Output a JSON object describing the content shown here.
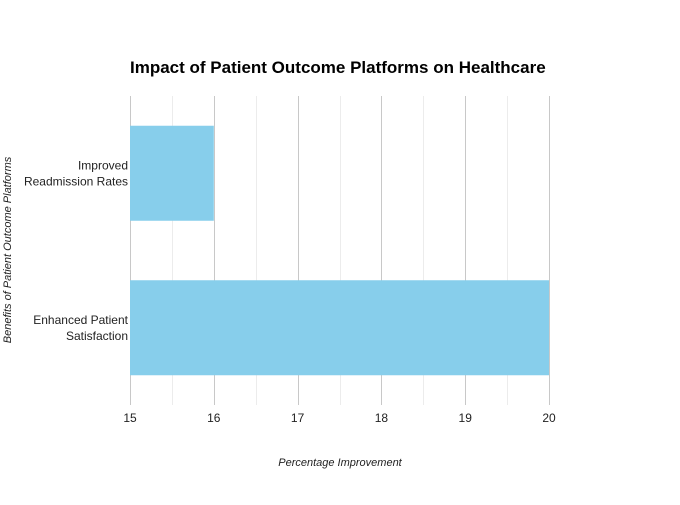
{
  "chart_data": {
    "type": "bar",
    "orientation": "horizontal",
    "title": "Impact of Patient Outcome Platforms on Healthcare",
    "xlabel": "Percentage Improvement",
    "ylabel": "Benefits of Patient Outcome Platforms",
    "categories": [
      [
        "Improved",
        "Readmission Rates"
      ],
      [
        "Enhanced Patient",
        "Satisfaction"
      ]
    ],
    "values": [
      16,
      20
    ],
    "xlim": [
      15,
      20
    ],
    "xticks": [
      "15",
      "16",
      "17",
      "18",
      "19",
      "20"
    ],
    "grid": true,
    "legend": "none",
    "bar_color": "#87CEEB",
    "grid_major_color": "#c8c8c8",
    "grid_minor_color": "#ececec"
  }
}
